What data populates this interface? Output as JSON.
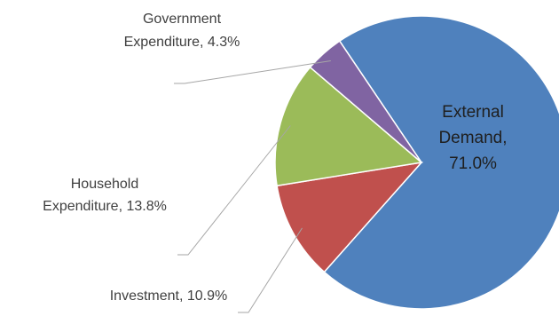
{
  "chart_data": {
    "type": "pie",
    "title": "",
    "slices": [
      {
        "name": "External Demand",
        "value": 71.0,
        "label_lines": [
          "External",
          "Demand,",
          "71.0%"
        ],
        "color": "#4f81bd"
      },
      {
        "name": "Investment",
        "value": 10.9,
        "label_lines": [
          "Investment, 10.9%"
        ],
        "color": "#c0504d"
      },
      {
        "name": "Household Expenditure",
        "value": 13.8,
        "label_lines": [
          "Household",
          "Expenditure, 13.8%"
        ],
        "color": "#9bbb59"
      },
      {
        "name": "Government Expenditure",
        "value": 4.3,
        "label_lines": [
          "Government",
          "Expenditure, 4.3%"
        ],
        "color": "#8064a2"
      }
    ]
  }
}
